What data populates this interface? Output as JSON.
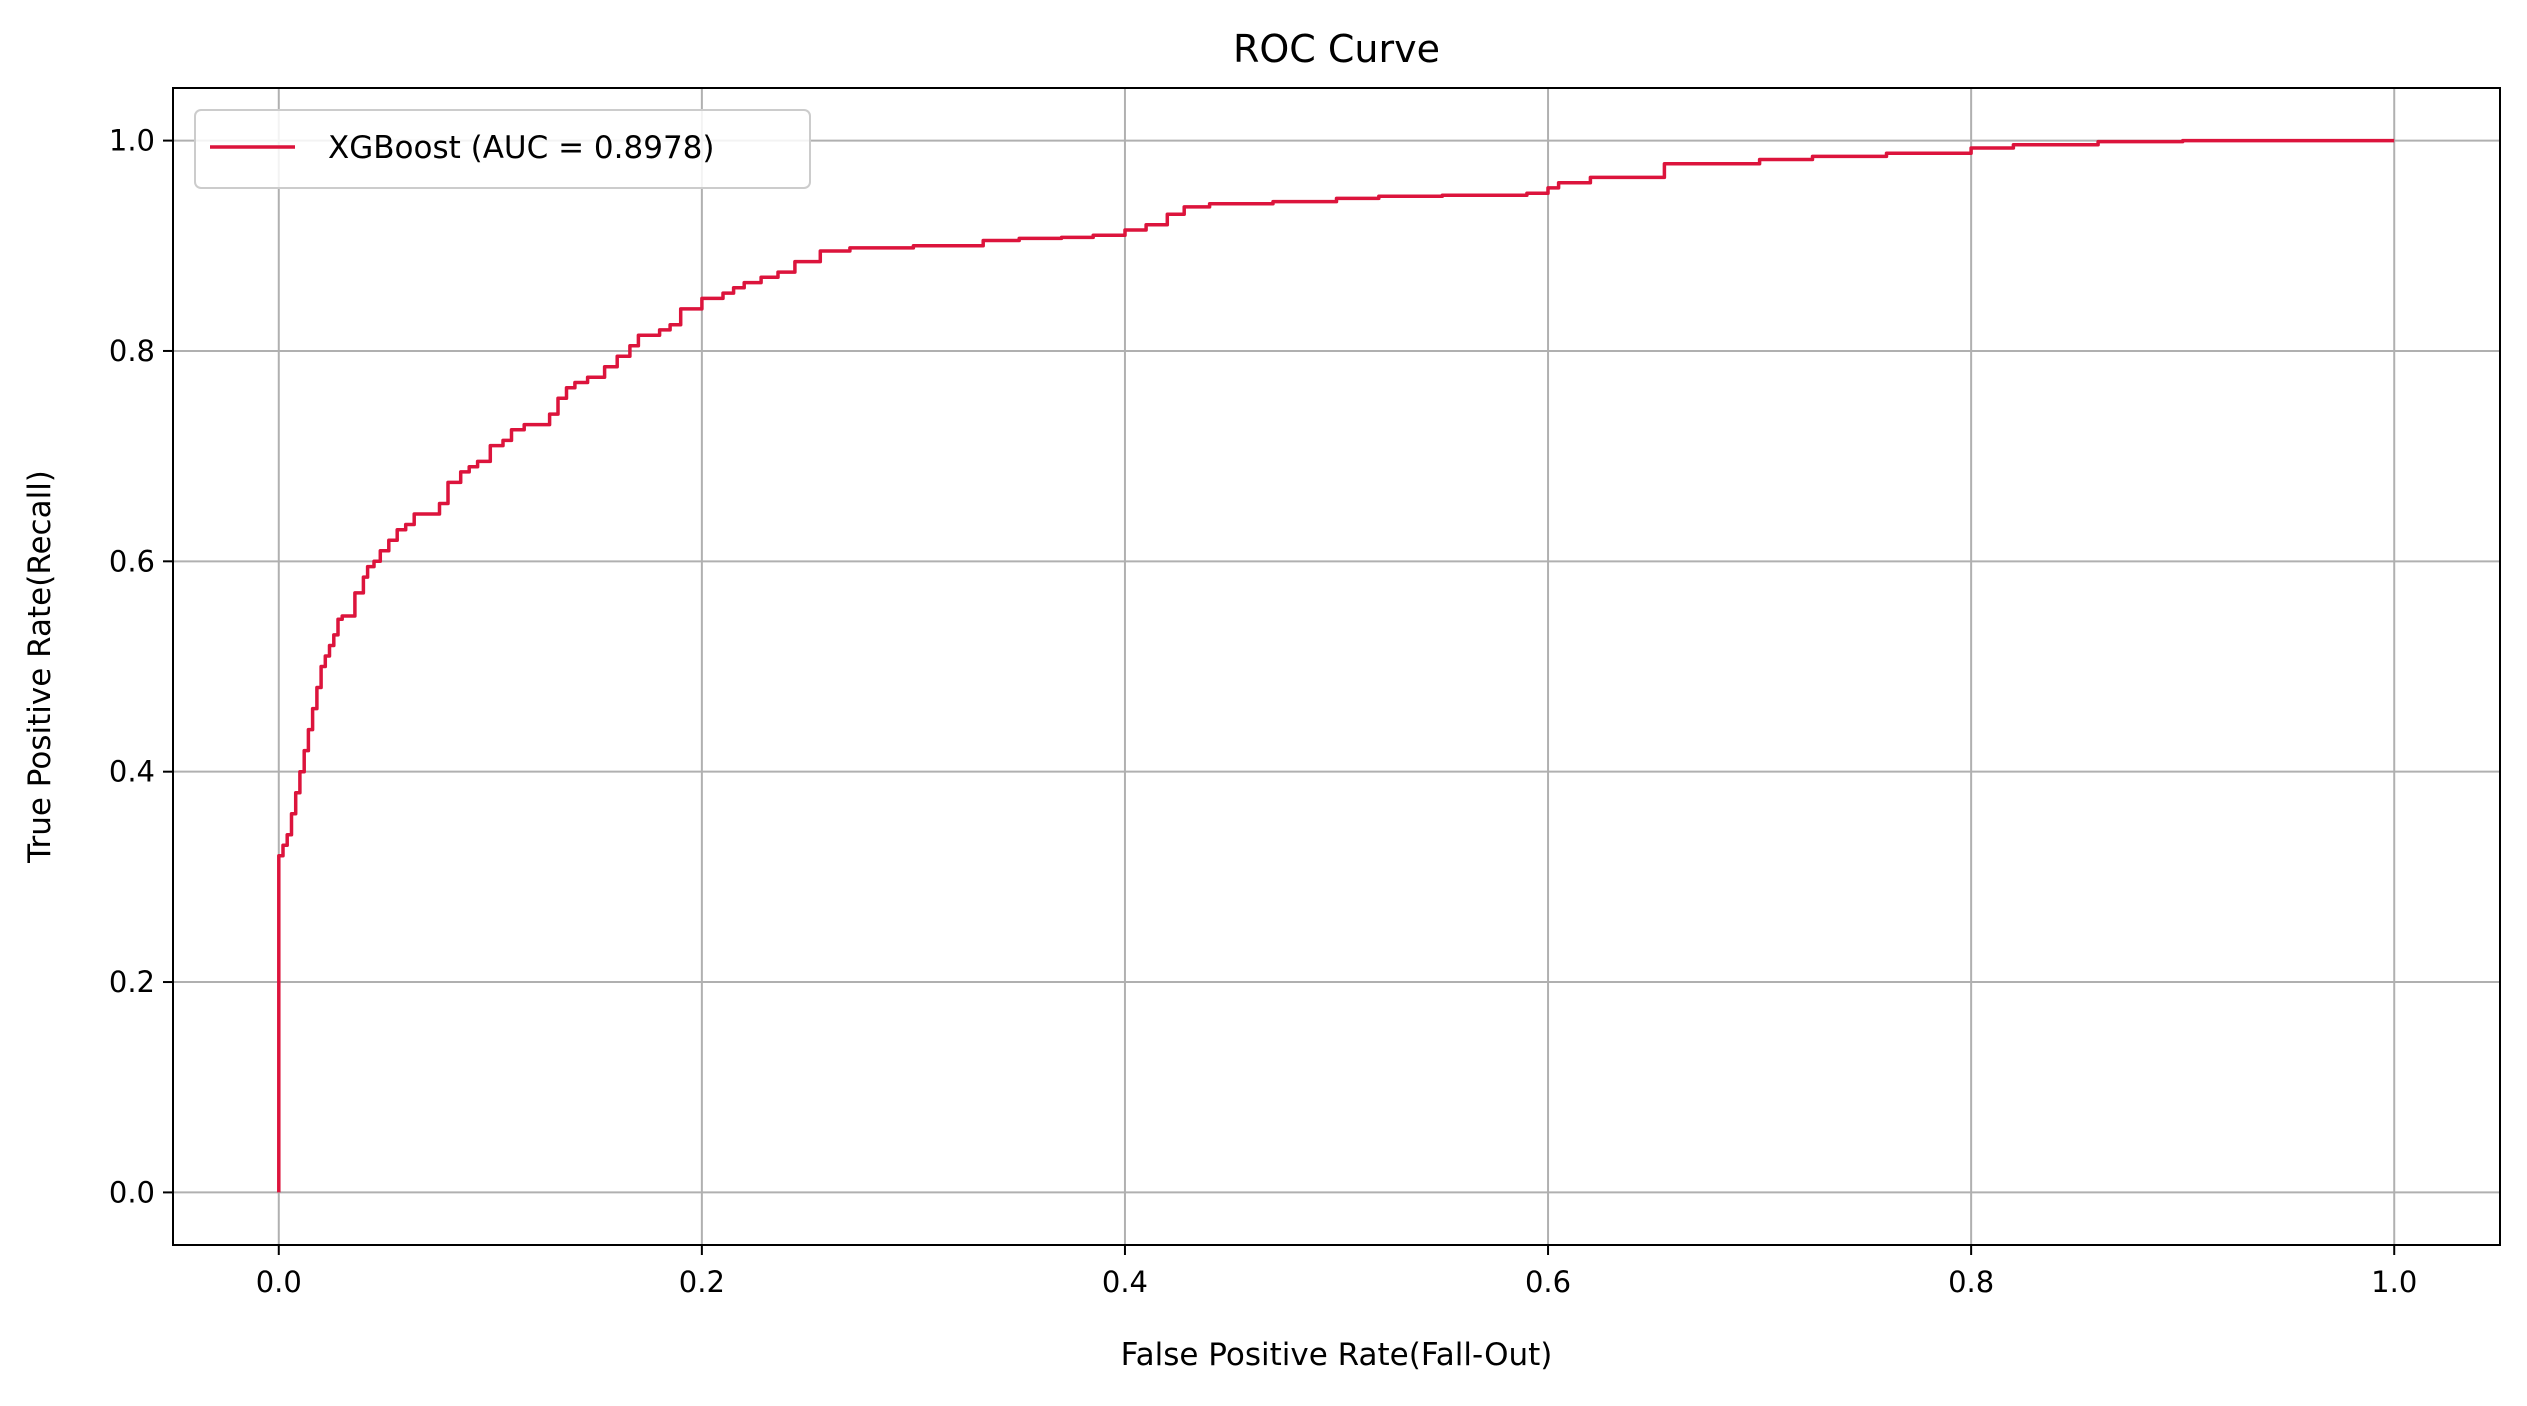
{
  "chart_data": {
    "type": "line",
    "title": "ROC Curve",
    "xlabel": "False Positive Rate(Fall-Out)",
    "ylabel": "True Positive Rate(Recall)",
    "xlim": [
      -0.05,
      1.05
    ],
    "ylim": [
      -0.05,
      1.05
    ],
    "xticks": [
      0.0,
      0.2,
      0.4,
      0.6,
      0.8,
      1.0
    ],
    "xtick_labels": [
      "0.0",
      "0.2",
      "0.4",
      "0.6",
      "0.8",
      "1.0"
    ],
    "yticks": [
      0.0,
      0.2,
      0.4,
      0.6,
      0.8,
      1.0
    ],
    "ytick_labels": [
      "0.0",
      "0.2",
      "0.4",
      "0.6",
      "0.8",
      "1.0"
    ],
    "grid": true,
    "legend_position": "upper-left",
    "series": [
      {
        "name": "XGBoost (AUC = 0.8978)",
        "color": "#dc143c",
        "x": [
          0.0,
          0.0,
          0.002,
          0.004,
          0.006,
          0.008,
          0.01,
          0.012,
          0.014,
          0.016,
          0.018,
          0.02,
          0.022,
          0.024,
          0.026,
          0.028,
          0.03,
          0.032,
          0.036,
          0.04,
          0.042,
          0.045,
          0.048,
          0.052,
          0.056,
          0.06,
          0.064,
          0.07,
          0.076,
          0.08,
          0.086,
          0.09,
          0.094,
          0.1,
          0.106,
          0.11,
          0.116,
          0.124,
          0.128,
          0.132,
          0.136,
          0.14,
          0.146,
          0.154,
          0.16,
          0.166,
          0.17,
          0.18,
          0.185,
          0.19,
          0.2,
          0.21,
          0.215,
          0.22,
          0.228,
          0.236,
          0.244,
          0.256,
          0.27,
          0.3,
          0.333,
          0.35,
          0.37,
          0.385,
          0.4,
          0.41,
          0.42,
          0.428,
          0.44,
          0.47,
          0.5,
          0.52,
          0.55,
          0.59,
          0.6,
          0.605,
          0.62,
          0.655,
          0.7,
          0.725,
          0.76,
          0.8,
          0.82,
          0.86,
          0.9,
          1.0
        ],
        "y": [
          0.0,
          0.32,
          0.33,
          0.34,
          0.36,
          0.38,
          0.4,
          0.42,
          0.44,
          0.46,
          0.48,
          0.5,
          0.51,
          0.52,
          0.53,
          0.545,
          0.548,
          0.548,
          0.57,
          0.585,
          0.595,
          0.6,
          0.61,
          0.62,
          0.63,
          0.635,
          0.645,
          0.645,
          0.655,
          0.675,
          0.685,
          0.69,
          0.695,
          0.71,
          0.715,
          0.725,
          0.73,
          0.73,
          0.74,
          0.755,
          0.765,
          0.77,
          0.775,
          0.785,
          0.795,
          0.805,
          0.815,
          0.82,
          0.825,
          0.84,
          0.85,
          0.855,
          0.86,
          0.865,
          0.87,
          0.875,
          0.885,
          0.895,
          0.898,
          0.9,
          0.905,
          0.907,
          0.908,
          0.91,
          0.915,
          0.92,
          0.93,
          0.937,
          0.94,
          0.942,
          0.945,
          0.947,
          0.948,
          0.95,
          0.955,
          0.96,
          0.965,
          0.978,
          0.982,
          0.985,
          0.988,
          0.993,
          0.996,
          0.999,
          1.0,
          1.0
        ]
      }
    ]
  }
}
